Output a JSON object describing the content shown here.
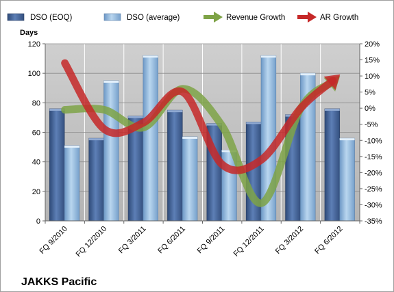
{
  "chart_data": {
    "type": "bar",
    "company_label": "JAKKS Pacific",
    "ylabel_left": "Days",
    "categories": [
      "FQ 9/2010",
      "FQ 12/2010",
      "FQ 3/2011",
      "FQ 6/2011",
      "FQ 9/2011",
      "FQ 12/2011",
      "FQ 3/2012",
      "FQ 6/2012"
    ],
    "ylim_left": [
      0,
      120
    ],
    "yticks_left": [
      "0",
      "20",
      "40",
      "60",
      "80",
      "100",
      "120"
    ],
    "ylim_right": [
      -35,
      20
    ],
    "yticks_right": [
      "-35%",
      "-30%",
      "-25%",
      "-20%",
      "-15%",
      "-10%",
      "-5%",
      "0%",
      "5%",
      "10%",
      "15%",
      "20%"
    ],
    "series": [
      {
        "name": "DSO (EOQ)",
        "axis": "left",
        "kind": "bar",
        "values": [
          76,
          56,
          71,
          75,
          66,
          67,
          72,
          76
        ]
      },
      {
        "name": "DSO (average)",
        "axis": "left",
        "kind": "bar",
        "values": [
          51,
          95,
          112,
          57,
          48,
          112,
          100,
          56
        ]
      },
      {
        "name": "Revenue Growth",
        "axis": "right",
        "kind": "line",
        "values": [
          -0.5,
          -0.5,
          -6,
          6,
          -5.5,
          -29.5,
          0,
          10
        ]
      },
      {
        "name": "AR Growth",
        "axis": "right",
        "kind": "line",
        "values": [
          14,
          -6.5,
          -4.5,
          5,
          -17.5,
          -16,
          0,
          10.5
        ]
      }
    ],
    "colors": {
      "eoq": "#4f6fa3",
      "average": "#a9cbe9",
      "revenue": "#7ea346",
      "ar": "#c62828",
      "plot_bg": "#c0c0c0"
    },
    "grid": true,
    "legend_position": "top"
  }
}
